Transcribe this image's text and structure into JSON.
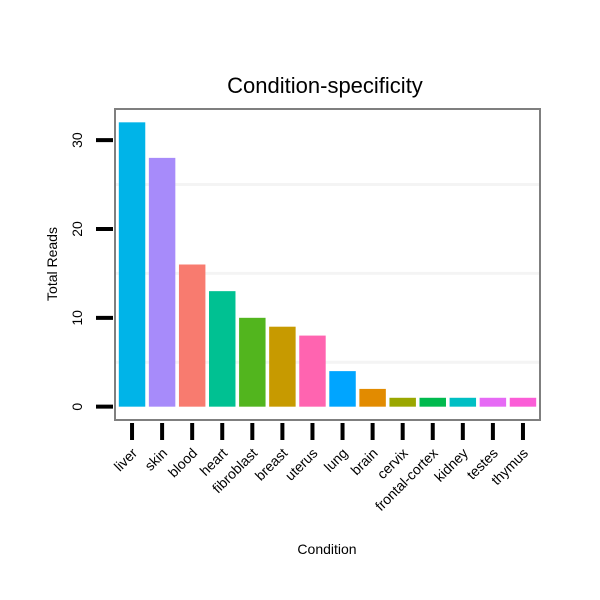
{
  "chart_data": {
    "type": "bar",
    "title": "Condition-specificity",
    "xlabel": "Condition",
    "ylabel": "Total Reads",
    "ylim": [
      -1.5,
      33.5
    ],
    "yticks": [
      0,
      10,
      20,
      30
    ],
    "grid": true,
    "categories": [
      "liver",
      "skin",
      "blood",
      "heart",
      "fibroblast",
      "breast",
      "uterus",
      "lung",
      "brain",
      "cervix",
      "frontal-cortex",
      "kidney",
      "testes",
      "thymus"
    ],
    "values": [
      32,
      28,
      16,
      13,
      10,
      9,
      8,
      4,
      2,
      1,
      1,
      1,
      1,
      1
    ],
    "colors": [
      "#00b4e8",
      "#a78bfa",
      "#f87b6f",
      "#00c192",
      "#52b51e",
      "#c79a00",
      "#ff64b0",
      "#00a5ff",
      "#e28b00",
      "#9aa700",
      "#00ba4e",
      "#00bfc4",
      "#e66af5",
      "#fb5dd7"
    ]
  }
}
